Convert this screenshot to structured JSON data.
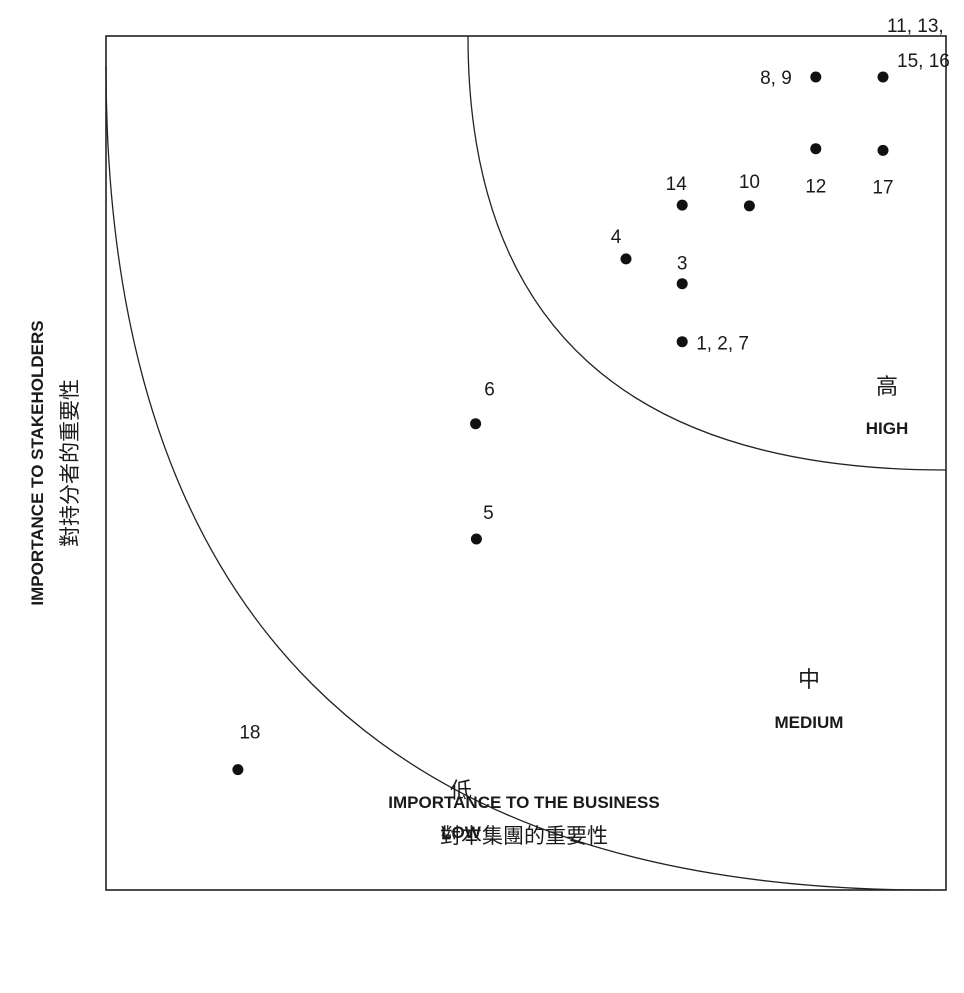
{
  "chart_data": {
    "type": "scatter",
    "title": "",
    "xlabel": "IMPORTANCE TO THE BUSINESS",
    "xlabel_cn": "對本集團的重要性",
    "ylabel": "IMPORTANCE TO STAKEHOLDERS",
    "ylabel_cn": "對持分者的重要性",
    "xlim": [
      0,
      100
    ],
    "ylim": [
      0,
      100
    ],
    "grid": false,
    "zones": [
      {
        "key": "high",
        "cn": "高",
        "en": "HIGH"
      },
      {
        "key": "medium",
        "cn": "中",
        "en": "MEDIUM"
      },
      {
        "key": "low",
        "cn": "低",
        "en": "LOW"
      }
    ],
    "points": [
      {
        "label": "11, 13,",
        "label2": "15, 16",
        "x": 92.5,
        "y": 95.2
      },
      {
        "label": "8, 9",
        "x": 84.5,
        "y": 95.2
      },
      {
        "label": "12",
        "x": 84.5,
        "y": 86.8
      },
      {
        "label": "17",
        "x": 92.5,
        "y": 86.6
      },
      {
        "label": "14",
        "x": 68.6,
        "y": 80.2
      },
      {
        "label": "10",
        "x": 76.6,
        "y": 80.1
      },
      {
        "label": "4",
        "x": 61.9,
        "y": 73.9
      },
      {
        "label": "3",
        "x": 68.6,
        "y": 71.0
      },
      {
        "label": "1, 2, 7",
        "x": 68.6,
        "y": 64.2
      },
      {
        "label": "6",
        "x": 44.0,
        "y": 54.6
      },
      {
        "label": "5",
        "x": 44.1,
        "y": 41.1
      },
      {
        "label": "18",
        "x": 15.7,
        "y": 14.1
      }
    ]
  }
}
